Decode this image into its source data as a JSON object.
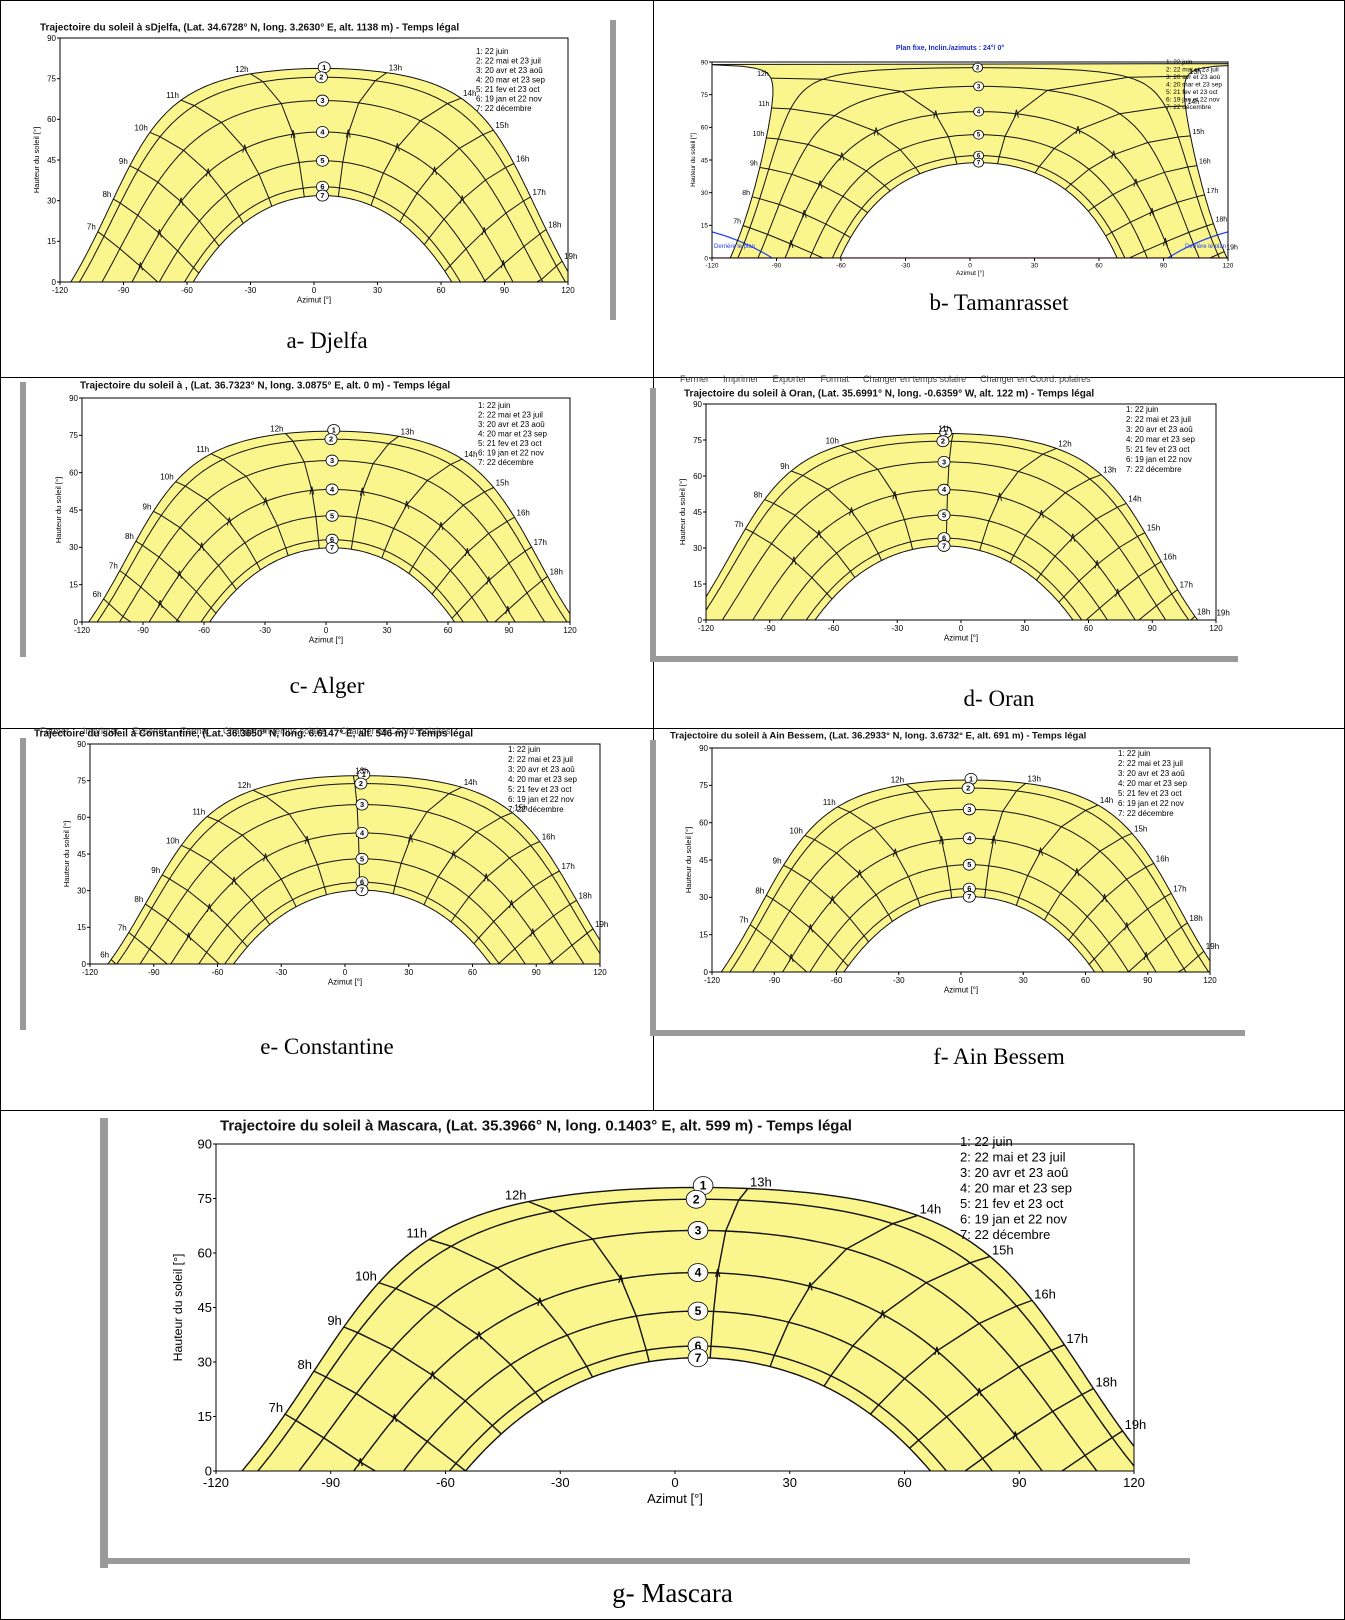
{
  "legend_items": [
    "1: 22 juin",
    "2: 22 mai et 23 juil",
    "3: 20 avr et 23 aoû",
    "4: 20 mar et 23 sep",
    "5: 21 fev et 23 oct",
    "6: 19 jan et 22 nov",
    "7: 22 décembre"
  ],
  "xlabel": "Azimut [°]",
  "ylabel": "Hauteur du soleil [°]",
  "menu_items": [
    "Fermer",
    "Imprimer",
    "Exporter",
    "Format",
    "Changer en temps solaire",
    "Changer en Coord. polaires"
  ],
  "colors": {
    "fill": "#fbf58d",
    "line": "#111111",
    "frame": "#9a9a9a",
    "horizon": "#ff3030",
    "limit": "#2040ff"
  },
  "panels": [
    {
      "id": "a",
      "caption": "a- Djelfa",
      "title": "Trajectoire du soleil à sDjelfa, (Lat. 34.6728° N, long. 3.2630° E, alt. 1138 m) - Temps légal"
    },
    {
      "id": "b",
      "caption": "b- Tamanrasset",
      "title": "Plan fixe, Inclin./azimuts : 24°/ 0°",
      "side_labels": [
        "Derrière le plan",
        "Derrière le plan"
      ]
    },
    {
      "id": "c",
      "caption": "c- Alger",
      "title": "Trajectoire du soleil à , (Lat. 36.7323° N, long. 3.0875° E, alt. 0 m) - Temps légal"
    },
    {
      "id": "d",
      "caption": "d- Oran",
      "title": "Trajectoire du soleil à Oran, (Lat. 35.6991° N, long. -0.6359° W, alt. 122 m) - Temps légal"
    },
    {
      "id": "e",
      "caption": "e- Constantine",
      "title": "Trajectoire du soleil à Constantine, (Lat. 36.3650° N, long. 6.6147° E, alt. 546 m) - Temps légal"
    },
    {
      "id": "f",
      "caption": "f- Ain Bessem",
      "title": "Trajectoire du soleil à Ain Bessem, (Lat. 36.2933° N, long. 3.6732° E, alt. 691 m) - Temps légal"
    },
    {
      "id": "g",
      "caption": "g- Mascara",
      "title": "Trajectoire du soleil à Mascara, (Lat. 35.3966° N, long. 0.1403° E, alt. 599 m) - Temps légal"
    }
  ],
  "chart_data": [
    {
      "panel": "a",
      "type": "line",
      "lat": 34.6728,
      "noon_offset_deg": 4,
      "hour_labels": [
        "7h",
        "8h",
        "9h",
        "10h",
        "11h",
        "12h",
        "13h",
        "14h",
        "15h",
        "16h",
        "17h",
        "18h",
        "19h"
      ],
      "xlim": [
        -120,
        120
      ],
      "ylim": [
        0,
        90
      ],
      "xticks": [
        -120,
        -90,
        -60,
        -30,
        0,
        30,
        60,
        90,
        120
      ],
      "yticks": [
        0,
        15,
        30,
        45,
        60,
        75,
        90
      ],
      "legend_position": "top-right",
      "grid": false
    },
    {
      "panel": "b",
      "type": "line",
      "lat": 22.785,
      "noon_offset_deg": 4,
      "hour_labels": [
        "7h",
        "8h",
        "9h",
        "10h",
        "11h",
        "12h",
        "13h",
        "14h",
        "15h",
        "16h",
        "17h",
        "18h",
        "19h"
      ],
      "xlim": [
        -120,
        120
      ],
      "ylim": [
        0,
        90
      ],
      "xticks": [
        -120,
        -90,
        -60,
        -30,
        0,
        30,
        60,
        90,
        120
      ],
      "yticks": [
        0,
        15,
        30,
        45,
        60,
        75,
        90
      ],
      "legend_position": "top-right",
      "grid": false
    },
    {
      "panel": "c",
      "type": "line",
      "lat": 36.7323,
      "noon_offset_deg": 3,
      "hour_labels": [
        "6h",
        "7h",
        "8h",
        "9h",
        "10h",
        "11h",
        "12h",
        "13h",
        "14h",
        "15h",
        "16h",
        "17h",
        "18h"
      ],
      "xlim": [
        -120,
        120
      ],
      "ylim": [
        0,
        90
      ],
      "xticks": [
        -120,
        -90,
        -60,
        -30,
        0,
        30,
        60,
        90,
        120
      ],
      "yticks": [
        0,
        15,
        30,
        45,
        60,
        75,
        90
      ],
      "legend_position": "top-right",
      "grid": false
    },
    {
      "panel": "d",
      "type": "line",
      "lat": 35.6991,
      "noon_offset_deg": -8,
      "hour_labels": [
        "7h",
        "8h",
        "9h",
        "10h",
        "11h",
        "12h",
        "13h",
        "14h",
        "15h",
        "16h",
        "17h",
        "18h",
        "19h"
      ],
      "xlim": [
        -120,
        120
      ],
      "ylim": [
        0,
        90
      ],
      "xticks": [
        -120,
        -90,
        -60,
        -30,
        0,
        30,
        60,
        90,
        120
      ],
      "yticks": [
        0,
        15,
        30,
        45,
        60,
        75,
        90
      ],
      "legend_position": "top-right",
      "grid": false
    },
    {
      "panel": "e",
      "type": "line",
      "lat": 36.365,
      "noon_offset_deg": 8,
      "hour_labels": [
        "6h",
        "7h",
        "8h",
        "9h",
        "10h",
        "11h",
        "12h",
        "13h",
        "14h",
        "15h",
        "16h",
        "17h",
        "18h",
        "19h"
      ],
      "xlim": [
        -120,
        120
      ],
      "ylim": [
        0,
        90
      ],
      "xticks": [
        -120,
        -90,
        -60,
        -30,
        0,
        30,
        60,
        90,
        120
      ],
      "yticks": [
        0,
        15,
        30,
        45,
        60,
        75,
        90
      ],
      "legend_position": "top-right",
      "grid": false
    },
    {
      "panel": "f",
      "type": "line",
      "lat": 36.2933,
      "noon_offset_deg": 4,
      "hour_labels": [
        "7h",
        "8h",
        "9h",
        "10h",
        "11h",
        "12h",
        "13h",
        "14h",
        "15h",
        "16h",
        "17h",
        "18h",
        "19h"
      ],
      "xlim": [
        -120,
        120
      ],
      "ylim": [
        0,
        90
      ],
      "xticks": [
        -120,
        -90,
        -60,
        -30,
        0,
        30,
        60,
        90,
        120
      ],
      "yticks": [
        0,
        15,
        30,
        45,
        60,
        75,
        90
      ],
      "legend_position": "top-right",
      "grid": false
    },
    {
      "panel": "g",
      "type": "line",
      "lat": 35.3966,
      "noon_offset_deg": 6,
      "hour_labels": [
        "7h",
        "8h",
        "9h",
        "10h",
        "11h",
        "12h",
        "13h",
        "14h",
        "15h",
        "16h",
        "17h",
        "18h",
        "19h"
      ],
      "xlim": [
        -120,
        120
      ],
      "ylim": [
        0,
        90
      ],
      "xticks": [
        -120,
        -90,
        -60,
        -30,
        0,
        30,
        60,
        90,
        120
      ],
      "yticks": [
        0,
        15,
        30,
        45,
        60,
        75,
        90
      ],
      "legend_position": "top-right",
      "grid": false
    }
  ]
}
